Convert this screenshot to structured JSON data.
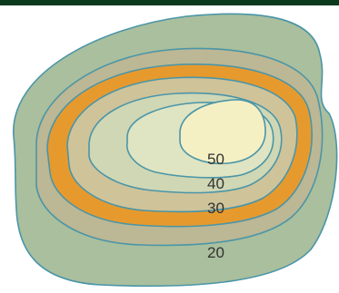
{
  "diagram": {
    "contour_labels": {
      "inner": "50",
      "second": "40",
      "third": "30",
      "outer": "20"
    },
    "colors": {
      "header_bar": "#0b3a1e",
      "outer_zone": "#a9bf9d",
      "ring_20_30": "#bcb794",
      "ring_orange": "#e69a2e",
      "ring_30_40": "#cfc39a",
      "ring_40_50": "#cfd7b4",
      "ring_near_peak": "#dfe4c2",
      "peak": "#f5f0c4",
      "contour_line": "#4a95a8"
    }
  }
}
